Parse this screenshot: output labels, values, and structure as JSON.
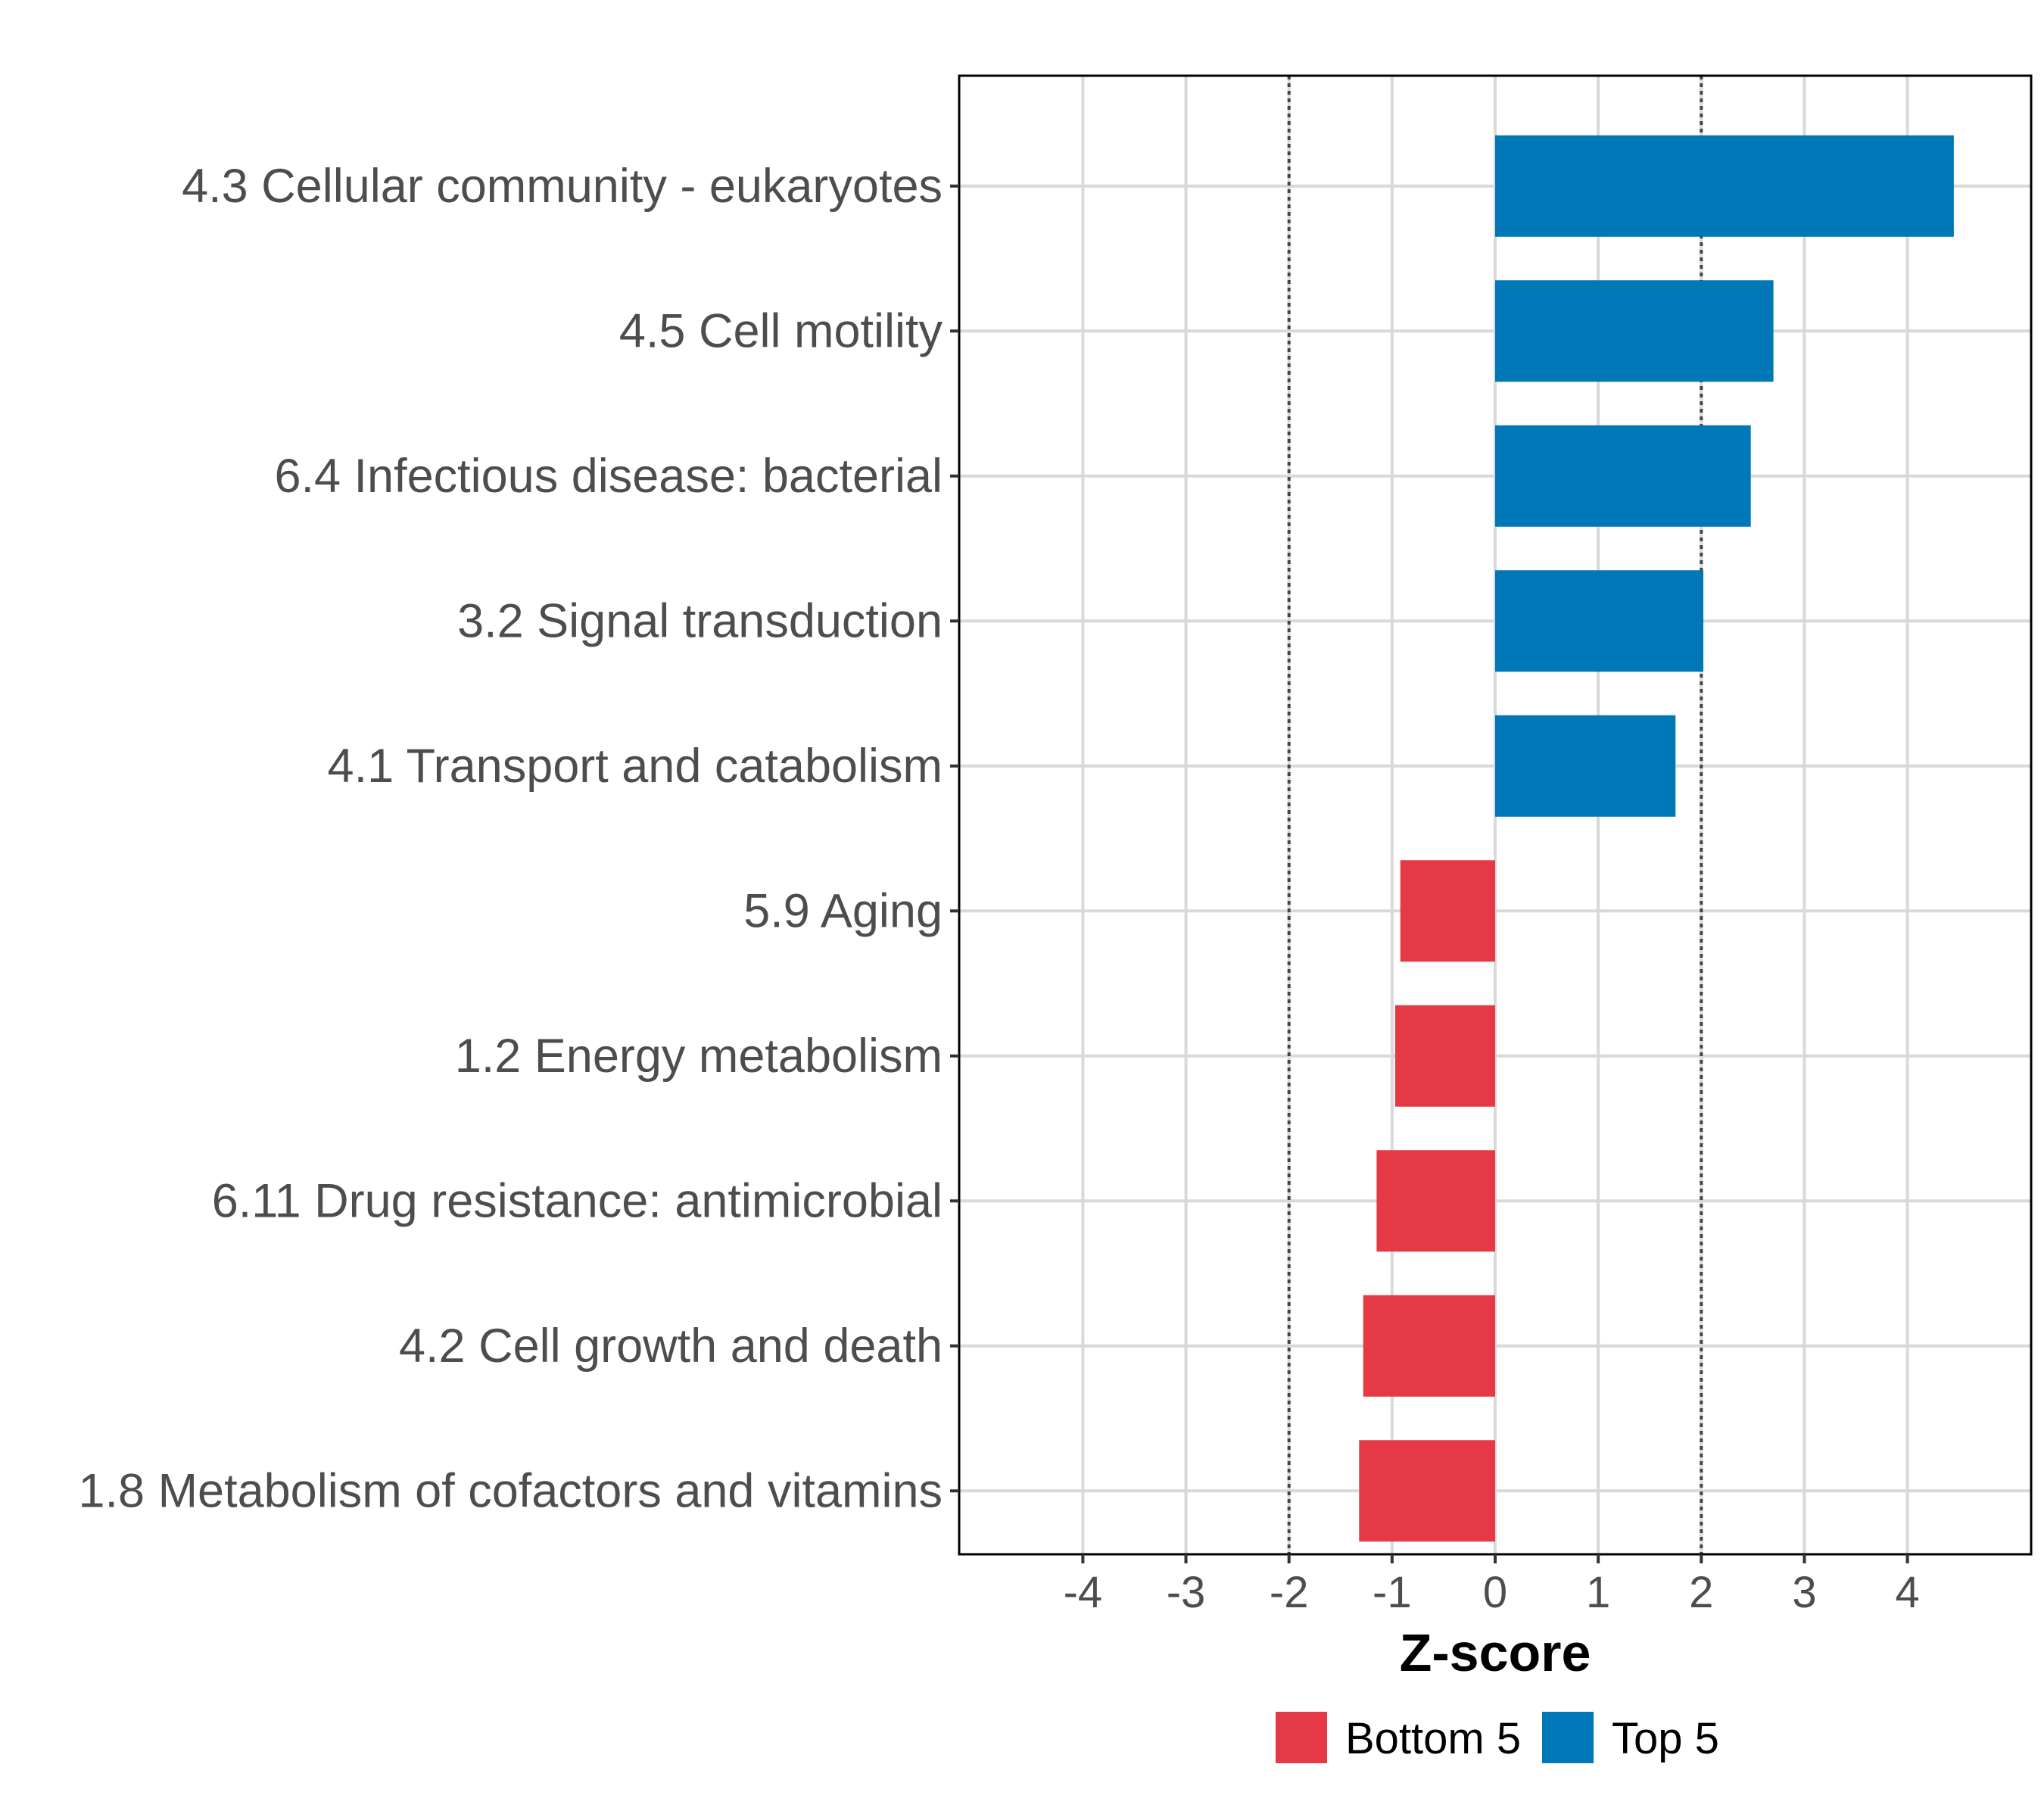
{
  "chart_data": {
    "type": "bar",
    "orientation": "horizontal",
    "xlabel": "Z-score",
    "xlim": [
      -5.2,
      5.2
    ],
    "x_ticks": [
      -4,
      -3,
      -2,
      -1,
      0,
      1,
      2,
      3,
      4
    ],
    "x_tick_labels": [
      "-4",
      "-3",
      "-2",
      "-1",
      "0",
      "1",
      "2",
      "3",
      "4"
    ],
    "reference_lines": [
      -2,
      2
    ],
    "grid": true,
    "categories": [
      "4.3 Cellular community - eukaryotes",
      "4.5 Cell motility",
      "6.4 Infectious disease: bacterial",
      "3.2 Signal transduction",
      "4.1 Transport and catabolism",
      "5.9 Aging",
      "1.2 Energy metabolism",
      "6.11 Drug resistance: antimicrobial",
      "4.2 Cell growth and death",
      "1.8 Metabolism of cofactors and vitamins"
    ],
    "values": [
      4.45,
      2.7,
      2.48,
      2.02,
      1.75,
      -0.92,
      -0.97,
      -1.15,
      -1.28,
      -1.32
    ],
    "groups": [
      "Top 5",
      "Top 5",
      "Top 5",
      "Top 5",
      "Top 5",
      "Bottom 5",
      "Bottom 5",
      "Bottom 5",
      "Bottom 5",
      "Bottom 5"
    ],
    "legend": {
      "position": "bottom",
      "entries": [
        {
          "label": "Bottom 5",
          "color": "#E63946"
        },
        {
          "label": "Top 5",
          "color": "#0077B6"
        }
      ]
    }
  }
}
